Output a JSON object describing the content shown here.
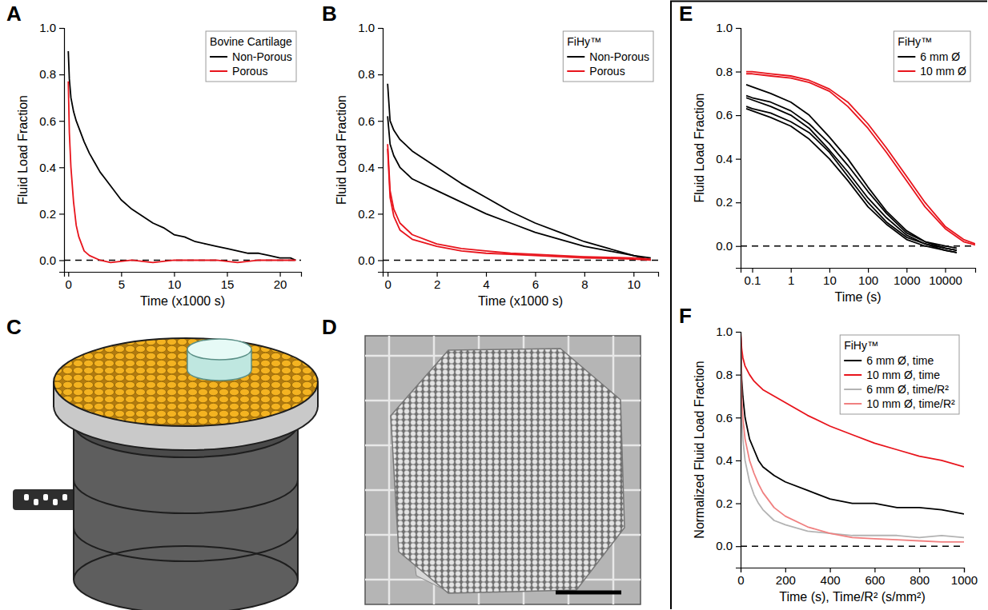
{
  "chart_data": [
    {
      "panel_label": "A",
      "type": "line",
      "legend_title": "Bovine Cartilage",
      "xlabel": "Time (x1000 s)",
      "ylabel": "Fluid Load Fraction",
      "xlim": [
        -0.4,
        22
      ],
      "ylim": [
        -0.05,
        1.0
      ],
      "xticks": [
        0,
        5,
        10,
        15,
        20
      ],
      "yticks": [
        {
          "value": 0,
          "label": "0.0"
        },
        0.2,
        0.4,
        0.6,
        0.8,
        {
          "value": 1,
          "label": "1.0"
        }
      ],
      "hline": 0,
      "legend": "top-right",
      "series": [
        {
          "name": "Non-Porous",
          "color": "#000000",
          "x": [
            0,
            0.1,
            0.25,
            0.5,
            0.75,
            1,
            1.5,
            2,
            2.5,
            3,
            3.5,
            4,
            5,
            6,
            7,
            8,
            9,
            10,
            11,
            12,
            13,
            14,
            15,
            16,
            17,
            18,
            19,
            20,
            21,
            21.5
          ],
          "values": [
            0.9,
            0.78,
            0.7,
            0.64,
            0.6,
            0.57,
            0.51,
            0.46,
            0.42,
            0.38,
            0.35,
            0.32,
            0.26,
            0.22,
            0.19,
            0.16,
            0.14,
            0.11,
            0.1,
            0.08,
            0.07,
            0.06,
            0.05,
            0.04,
            0.03,
            0.03,
            0.02,
            0.01,
            0.01,
            0.0
          ]
        },
        {
          "name": "Porous",
          "color": "#e8141c",
          "x": [
            0,
            0.1,
            0.25,
            0.5,
            0.75,
            1,
            1.5,
            2,
            3,
            4,
            6,
            8,
            10,
            12,
            14,
            16,
            18,
            20,
            21.5
          ],
          "values": [
            0.77,
            0.55,
            0.4,
            0.25,
            0.15,
            0.1,
            0.04,
            0.02,
            0.0,
            -0.01,
            0.0,
            -0.01,
            0.0,
            0.0,
            0.0,
            -0.01,
            0.0,
            0.0,
            0.0
          ]
        }
      ]
    },
    {
      "panel_label": "B",
      "type": "line",
      "legend_title": "FiHy™",
      "xlabel": "Time (x1000 s)",
      "ylabel": "Fluid Load Fraction",
      "xlim": [
        -0.2,
        11
      ],
      "ylim": [
        -0.05,
        1.0
      ],
      "xticks": [
        0,
        2,
        4,
        6,
        8,
        10
      ],
      "yticks": [
        {
          "value": 0,
          "label": "0.0"
        },
        0.2,
        0.4,
        0.6,
        0.8,
        {
          "value": 1,
          "label": "1.0"
        }
      ],
      "hline": 0,
      "legend": "top-right",
      "x": [
        0,
        0.1,
        0.25,
        0.5,
        1,
        2,
        3,
        4,
        5,
        6,
        7,
        8,
        9,
        10,
        10.7
      ],
      "series": [
        {
          "name": "Non-Porous",
          "color": "#000000",
          "values": [
            0.76,
            0.6,
            0.56,
            0.52,
            0.47,
            0.4,
            0.33,
            0.27,
            0.21,
            0.16,
            0.12,
            0.08,
            0.05,
            0.02,
            0.01
          ]
        },
        {
          "name": "Non-Porous",
          "color": "#000000",
          "values": [
            0.62,
            0.5,
            0.45,
            0.4,
            0.35,
            0.3,
            0.25,
            0.2,
            0.16,
            0.12,
            0.09,
            0.06,
            0.04,
            0.02,
            0.0
          ]
        },
        {
          "name": "Porous",
          "color": "#e8141c",
          "values": [
            0.5,
            0.3,
            0.22,
            0.16,
            0.11,
            0.07,
            0.05,
            0.04,
            0.03,
            0.025,
            0.02,
            0.015,
            0.012,
            0.01,
            0.005
          ]
        },
        {
          "name": "Porous",
          "color": "#e8141c",
          "values": [
            0.48,
            0.27,
            0.19,
            0.13,
            0.09,
            0.06,
            0.04,
            0.03,
            0.025,
            0.02,
            0.015,
            0.01,
            0.008,
            0.005,
            0.0
          ]
        }
      ]
    },
    {
      "panel_label": "E",
      "type": "line",
      "legend_title": "FiHy™",
      "xlabel": "Time (s)",
      "ylabel": "Fluid Load Fraction",
      "log": "x",
      "xlim": [
        0.05,
        60000
      ],
      "ylim": [
        -0.1,
        1.0
      ],
      "xticks": [
        0.1,
        1,
        10,
        100,
        1000,
        10000
      ],
      "yticks": [
        {
          "value": 0,
          "label": "0.0"
        },
        0.2,
        0.4,
        0.6,
        0.8,
        {
          "value": 1,
          "label": "1.0"
        }
      ],
      "hline": 0,
      "legend": "top-right",
      "series": [
        {
          "name": "6 mm Ø",
          "color": "#000000",
          "x": [
            0.07,
            0.1,
            0.3,
            1,
            3,
            10,
            30,
            100,
            300,
            1000,
            3000,
            10000,
            20000
          ],
          "values": [
            0.74,
            0.73,
            0.7,
            0.66,
            0.6,
            0.5,
            0.4,
            0.27,
            0.16,
            0.07,
            0.02,
            0.0,
            -0.01
          ]
        },
        {
          "name": "6 mm Ø",
          "color": "#000000",
          "x": [
            0.07,
            0.1,
            0.3,
            1,
            3,
            10,
            30,
            100,
            300,
            1000,
            3000,
            10000,
            20000
          ],
          "values": [
            0.69,
            0.68,
            0.66,
            0.62,
            0.56,
            0.47,
            0.37,
            0.25,
            0.15,
            0.06,
            0.02,
            -0.01,
            -0.02
          ]
        },
        {
          "name": "6 mm Ø",
          "color": "#000000",
          "x": [
            0.07,
            0.1,
            0.3,
            1,
            3,
            10,
            30,
            100,
            300,
            1000,
            3000,
            10000,
            20000
          ],
          "values": [
            0.68,
            0.67,
            0.64,
            0.6,
            0.54,
            0.44,
            0.34,
            0.22,
            0.13,
            0.05,
            0.01,
            -0.01,
            -0.02
          ]
        },
        {
          "name": "6 mm Ø",
          "color": "#000000",
          "x": [
            0.07,
            0.1,
            0.3,
            1,
            3,
            10,
            30,
            100,
            300,
            1000,
            3000,
            10000,
            20000
          ],
          "values": [
            0.64,
            0.63,
            0.61,
            0.57,
            0.52,
            0.43,
            0.32,
            0.2,
            0.11,
            0.04,
            0.01,
            -0.02,
            -0.03
          ]
        },
        {
          "name": "6 mm Ø",
          "color": "#000000",
          "x": [
            0.07,
            0.1,
            0.3,
            1,
            3,
            10,
            30,
            100,
            300,
            1000,
            3000,
            10000,
            20000
          ],
          "values": [
            0.63,
            0.62,
            0.59,
            0.55,
            0.49,
            0.4,
            0.3,
            0.18,
            0.1,
            0.03,
            0.0,
            -0.02,
            -0.03
          ]
        },
        {
          "name": "10 mm Ø",
          "color": "#e8141c",
          "x": [
            0.07,
            0.1,
            0.3,
            1,
            3,
            10,
            30,
            100,
            300,
            1000,
            3000,
            10000,
            30000,
            60000
          ],
          "values": [
            0.8,
            0.8,
            0.79,
            0.78,
            0.76,
            0.72,
            0.66,
            0.56,
            0.45,
            0.32,
            0.2,
            0.09,
            0.03,
            0.01
          ]
        },
        {
          "name": "10 mm Ø",
          "color": "#e8141c",
          "x": [
            0.07,
            0.1,
            0.3,
            1,
            3,
            10,
            30,
            100,
            300,
            1000,
            3000,
            10000,
            30000,
            60000
          ],
          "values": [
            0.79,
            0.79,
            0.78,
            0.77,
            0.75,
            0.71,
            0.64,
            0.54,
            0.43,
            0.3,
            0.18,
            0.08,
            0.02,
            0.005
          ]
        }
      ]
    },
    {
      "panel_label": "F",
      "type": "line",
      "legend_title": "FiHy™",
      "xlabel": "Time (s), Time/R² (s/mm²)",
      "ylabel": "Normalized Fluid Load Fraction",
      "xlim": [
        0,
        1000
      ],
      "ylim": [
        -0.1,
        1.0
      ],
      "xticks": [
        0,
        200,
        400,
        600,
        800,
        1000
      ],
      "yticks": [
        {
          "value": 0,
          "label": "0.0"
        },
        0.2,
        0.4,
        0.6,
        0.8,
        {
          "value": 1,
          "label": "1.0"
        }
      ],
      "hline": 0,
      "legend": "top-right",
      "x": [
        0,
        5,
        10,
        20,
        40,
        60,
        80,
        100,
        150,
        200,
        300,
        400,
        500,
        600,
        700,
        800,
        900,
        1000
      ],
      "series": [
        {
          "name": "6 mm Ø, time",
          "color": "#000000",
          "values": [
            1.0,
            0.78,
            0.7,
            0.6,
            0.5,
            0.45,
            0.4,
            0.37,
            0.33,
            0.3,
            0.26,
            0.22,
            0.2,
            0.2,
            0.18,
            0.18,
            0.17,
            0.15
          ]
        },
        {
          "name": "10 mm Ø, time",
          "color": "#e8141c",
          "values": [
            1.0,
            0.92,
            0.88,
            0.84,
            0.8,
            0.77,
            0.75,
            0.73,
            0.7,
            0.67,
            0.61,
            0.56,
            0.52,
            0.48,
            0.45,
            0.42,
            0.4,
            0.37
          ]
        },
        {
          "name": "6 mm Ø, time/R²",
          "color": "#b3b3b3",
          "values": [
            1.0,
            0.6,
            0.5,
            0.4,
            0.3,
            0.24,
            0.2,
            0.17,
            0.12,
            0.1,
            0.07,
            0.06,
            0.05,
            0.05,
            0.05,
            0.04,
            0.05,
            0.04
          ]
        },
        {
          "name": "10 mm Ø, time/R²",
          "color": "#f08080",
          "values": [
            1.0,
            0.7,
            0.6,
            0.5,
            0.4,
            0.34,
            0.29,
            0.25,
            0.18,
            0.14,
            0.09,
            0.06,
            0.04,
            0.035,
            0.03,
            0.025,
            0.02,
            0.02
          ]
        }
      ]
    }
  ],
  "illustrations": [
    {
      "panel_label": "C"
    },
    {
      "panel_label": "D"
    }
  ]
}
